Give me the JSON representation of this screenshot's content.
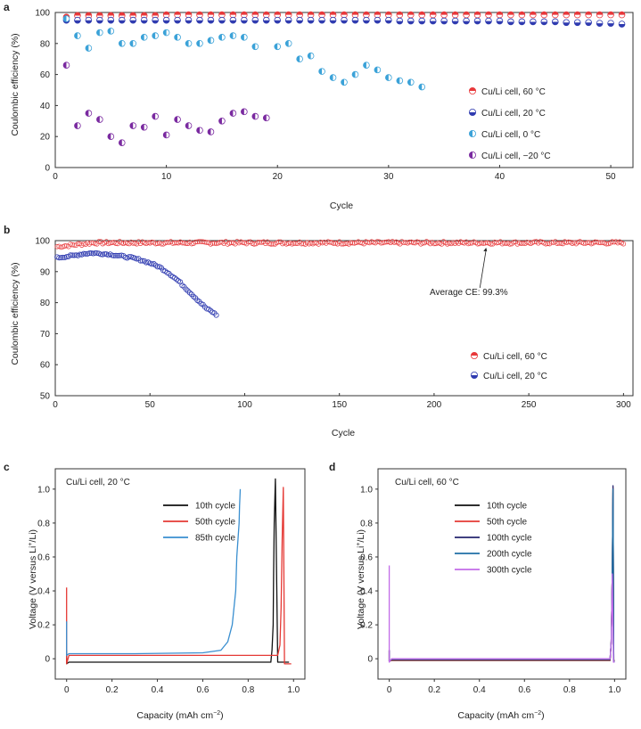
{
  "colors": {
    "c60": "#e8383a",
    "c20": "#2f3bb0",
    "c0": "#3ba2d8",
    "cm20": "#7a2aa0",
    "black": "#111111",
    "red_line": "#e53935",
    "blue_line": "#3a8fd0",
    "navy_line": "#24246e",
    "teal_line": "#1f6fa6",
    "magenta_line": "#c26be8"
  },
  "chart_data": [
    {
      "panel": "a",
      "type": "scatter",
      "xlabel": "Cycle",
      "ylabel": "Coulombic efficiency (%)",
      "xlim": [
        0,
        52
      ],
      "ylim": [
        0,
        100
      ],
      "xticks": [
        0,
        10,
        20,
        30,
        40,
        50
      ],
      "yticks": [
        0,
        20,
        40,
        60,
        80,
        100
      ],
      "legend_position": "right",
      "series": [
        {
          "name": "Cu/Li cell, 60 °C",
          "color": "c60",
          "x": [
            1,
            2,
            3,
            4,
            5,
            6,
            7,
            8,
            9,
            10,
            11,
            12,
            13,
            14,
            15,
            16,
            17,
            18,
            19,
            20,
            21,
            22,
            23,
            24,
            25,
            26,
            27,
            28,
            29,
            30,
            31,
            32,
            33,
            34,
            35,
            36,
            37,
            38,
            39,
            40,
            41,
            42,
            43,
            44,
            45,
            46,
            47,
            48,
            49,
            50,
            51
          ],
          "y": [
            97,
            98,
            98,
            98,
            98,
            98,
            98,
            98,
            98,
            98.5,
            98.5,
            98.5,
            98.5,
            98.5,
            98.5,
            98.5,
            98.5,
            98.5,
            98.5,
            98.5,
            98.5,
            98.5,
            98.5,
            98.5,
            98.5,
            98.5,
            98.5,
            98.5,
            98.5,
            98.5,
            98.5,
            98.5,
            98.5,
            98.5,
            98.5,
            98.5,
            98.5,
            98.5,
            98.5,
            98.5,
            98.5,
            98.5,
            98.5,
            98.5,
            98.5,
            98.5,
            98.5,
            98.5,
            98.5,
            98.5,
            98.5
          ]
        },
        {
          "name": "Cu/Li cell, 20 °C",
          "color": "c20",
          "x": [
            1,
            2,
            3,
            4,
            5,
            6,
            7,
            8,
            9,
            10,
            11,
            12,
            13,
            14,
            15,
            16,
            17,
            18,
            19,
            20,
            21,
            22,
            23,
            24,
            25,
            26,
            27,
            28,
            29,
            30,
            31,
            32,
            33,
            34,
            35,
            36,
            37,
            38,
            39,
            40,
            41,
            42,
            43,
            44,
            45,
            46,
            47,
            48,
            49,
            50,
            51
          ],
          "y": [
            95,
            95,
            95,
            95,
            95,
            95,
            95,
            95,
            95,
            95,
            95,
            95,
            95,
            95,
            95,
            95,
            95,
            95,
            95,
            95,
            95,
            95,
            95,
            95,
            95,
            95,
            95,
            95,
            95,
            95,
            94.5,
            94.5,
            94.5,
            94.5,
            94.5,
            94.5,
            94.5,
            94.5,
            94.5,
            94.5,
            94,
            94,
            94,
            94,
            94,
            93.5,
            93.5,
            93.5,
            93,
            93,
            92.5
          ]
        },
        {
          "name": "Cu/Li cell, 0 °C",
          "color": "c0",
          "x": [
            1,
            2,
            3,
            4,
            5,
            6,
            7,
            8,
            9,
            10,
            11,
            12,
            13,
            14,
            15,
            16,
            17,
            18,
            20,
            21,
            22,
            23,
            24,
            25,
            26,
            27,
            28,
            29,
            30,
            31,
            32,
            33
          ],
          "y": [
            96,
            85,
            77,
            87,
            88,
            80,
            80,
            84,
            85,
            87,
            84,
            80,
            80,
            82,
            84,
            85,
            84,
            78,
            78,
            80,
            70,
            72,
            62,
            58,
            55,
            60,
            66,
            63,
            58,
            56,
            55,
            52
          ]
        },
        {
          "name": "Cu/Li cell, −20 °C",
          "color": "cm20",
          "x": [
            1,
            2,
            3,
            4,
            5,
            6,
            7,
            8,
            9,
            10,
            11,
            12,
            13,
            14,
            15,
            16,
            17,
            18,
            19
          ],
          "y": [
            66,
            27,
            35,
            31,
            20,
            16,
            27,
            26,
            33,
            21,
            31,
            27,
            24,
            23,
            30,
            35,
            36,
            33,
            32
          ]
        }
      ]
    },
    {
      "panel": "b",
      "type": "scatter",
      "xlabel": "Cycle",
      "ylabel": "Coulombic efficiency (%)",
      "xlim": [
        0,
        305
      ],
      "ylim": [
        50,
        100
      ],
      "xticks": [
        0,
        50,
        100,
        150,
        200,
        250,
        300
      ],
      "yticks": [
        50,
        60,
        70,
        80,
        90,
        100
      ],
      "legend_position": "bottom-right",
      "annotation": {
        "text": "Average CE: 99.3%",
        "x": 227,
        "y": 98.3
      },
      "series": [
        {
          "name": "Cu/Li cell, 60 °C",
          "color": "c60",
          "x_start": 1,
          "x_end": 300,
          "y_start": 98.0,
          "y_plateau": 99.3
        },
        {
          "name": "Cu/Li cell, 20 °C",
          "color": "c20",
          "x": [
            1,
            5,
            10,
            15,
            20,
            25,
            30,
            35,
            40,
            45,
            50,
            55,
            60,
            65,
            70,
            75,
            80,
            83,
            85
          ],
          "y": [
            94.5,
            94.8,
            95.2,
            95.8,
            96.0,
            95.8,
            95.5,
            95.0,
            94.5,
            93.8,
            92.8,
            91.5,
            89.5,
            87,
            84,
            81,
            78,
            77,
            76
          ]
        }
      ]
    },
    {
      "panel": "c",
      "type": "line",
      "title": "Cu/Li cell, 20 °C",
      "xlabel": "Capacity (mAh cm",
      "xlabel_sup": "−2",
      "xlabel_end": ")",
      "ylabel": "Voltage (V versus Li",
      "ylabel_sup": "+",
      "ylabel_end": "/Li)",
      "xlim": [
        -0.05,
        1.05
      ],
      "ylim": [
        -0.12,
        1.12
      ],
      "xticks": [
        "0",
        "0.2",
        "0.4",
        "0.6",
        "0.8",
        "1.0"
      ],
      "yticks": [
        "0",
        "0.2",
        "0.4",
        "0.6",
        "0.8",
        "1.0"
      ],
      "legend_position": "top-right",
      "series": [
        {
          "name": "10th cycle",
          "color": "black",
          "x": [
            0,
            0,
            0.01,
            0.5,
            0.9,
            0.905,
            0.91,
            0.912,
            0.915,
            0.92,
            0.93,
            0.95,
            0.98
          ],
          "y": [
            0.05,
            -0.03,
            -0.02,
            -0.02,
            -0.02,
            0.05,
            0.2,
            0.5,
            0.8,
            1.06,
            -0.02,
            -0.02,
            -0.02
          ]
        },
        {
          "name": "50th cycle",
          "color": "red_line",
          "x": [
            0,
            0,
            0,
            0.01,
            0.5,
            0.93,
            0.94,
            0.945,
            0.95,
            0.955,
            0.96,
            0.98,
            0.99
          ],
          "y": [
            0.42,
            0.1,
            -0.03,
            0.02,
            0.02,
            0.02,
            0.08,
            0.3,
            0.7,
            1.01,
            -0.03,
            -0.03,
            -0.03
          ]
        },
        {
          "name": "85th cycle",
          "color": "blue_line",
          "x": [
            0,
            0,
            0.01,
            0.3,
            0.6,
            0.68,
            0.71,
            0.73,
            0.745,
            0.75,
            0.755,
            0.76,
            0.762,
            0.765
          ],
          "y": [
            0.22,
            0.02,
            0.03,
            0.03,
            0.035,
            0.05,
            0.1,
            0.2,
            0.4,
            0.6,
            0.7,
            0.8,
            0.9,
            1.0
          ]
        }
      ]
    },
    {
      "panel": "d",
      "type": "line",
      "title": "Cu/Li cell, 60 °C",
      "xlabel": "Capacity (mAh cm",
      "xlabel_sup": "−2",
      "xlabel_end": ")",
      "ylabel": "Voltage (V versus Li",
      "ylabel_sup": "+",
      "ylabel_end": "/Li)",
      "xlim": [
        -0.05,
        1.05
      ],
      "ylim": [
        -0.12,
        1.12
      ],
      "xticks": [
        "0",
        "0.2",
        "0.4",
        "0.6",
        "0.8",
        "1.0"
      ],
      "yticks": [
        "0",
        "0.2",
        "0.4",
        "0.6",
        "0.8",
        "1.0"
      ],
      "legend_position": "top-center",
      "series": [
        {
          "name": "10th cycle",
          "color": "black",
          "x": [
            0,
            0,
            0.01,
            0.5,
            0.98,
            0.985,
            0.99,
            0.993,
            0.996,
            1.0
          ],
          "y": [
            0.05,
            -0.015,
            -0.01,
            -0.01,
            -0.01,
            0.1,
            0.5,
            1.0,
            -0.01,
            -0.01
          ]
        },
        {
          "name": "50th cycle",
          "color": "red_line",
          "x": [
            0,
            0,
            0.01,
            0.5,
            0.98,
            0.985,
            0.99,
            0.993,
            0.996,
            1.0
          ],
          "y": [
            0.05,
            -0.015,
            -0.008,
            -0.008,
            -0.008,
            0.1,
            0.5,
            1.01,
            -0.012,
            -0.012
          ]
        },
        {
          "name": "100th cycle",
          "color": "navy_line",
          "x": [
            0,
            0,
            0.01,
            0.5,
            0.98,
            0.985,
            0.99,
            0.993,
            0.996,
            1.0
          ],
          "y": [
            0.05,
            -0.015,
            -0.005,
            -0.005,
            -0.005,
            0.1,
            0.5,
            1.02,
            -0.015,
            -0.015
          ]
        },
        {
          "name": "200th cycle",
          "color": "teal_line",
          "x": [
            0,
            0,
            0.01,
            0.5,
            0.98,
            0.985,
            0.99,
            0.993,
            0.996,
            1.0
          ],
          "y": [
            0.05,
            -0.015,
            -0.003,
            -0.003,
            -0.003,
            0.1,
            0.5,
            1.0,
            -0.018,
            -0.018
          ]
        },
        {
          "name": "300th cycle",
          "color": "magenta_line",
          "x": [
            0,
            0,
            0,
            0.01,
            0.5,
            0.98,
            0.985,
            0.99,
            0.995,
            1.0
          ],
          "y": [
            0.55,
            0.2,
            -0.02,
            0.0,
            0.0,
            0.0,
            0.1,
            0.5,
            -0.02,
            -0.02
          ]
        }
      ]
    }
  ]
}
